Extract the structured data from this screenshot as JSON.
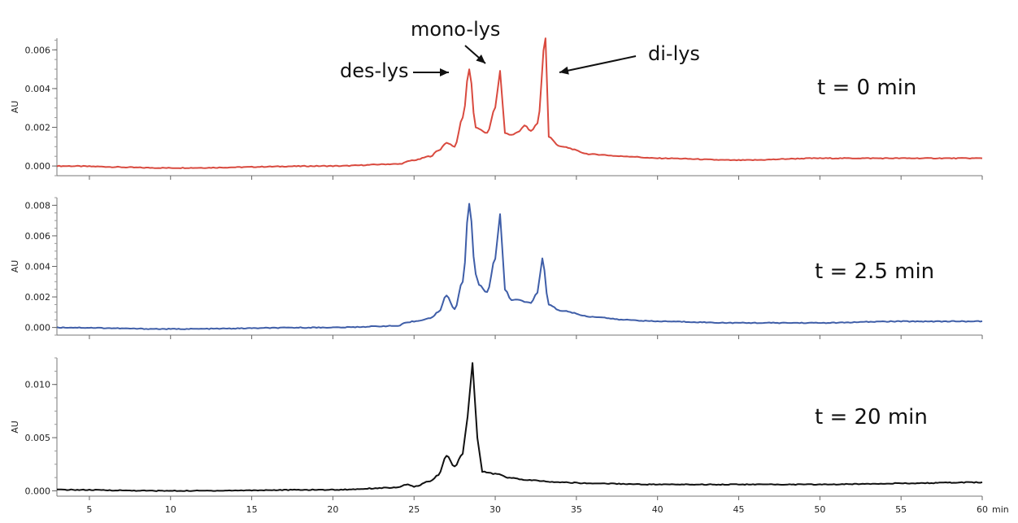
{
  "chart_data": [
    {
      "type": "line",
      "ylabel": "AU",
      "series": [
        {
          "color": "#d94a3f",
          "x": [
            3,
            10,
            20,
            24,
            25,
            26,
            26.5,
            27,
            27.5,
            28,
            28.4,
            28.8,
            29,
            29.5,
            30,
            30.3,
            30.6,
            31,
            31.5,
            31.8,
            32.2,
            32.6,
            33.1,
            33.3,
            34,
            36,
            38,
            40,
            45,
            50,
            55,
            60
          ],
          "y": [
            0.0,
            -0.0001,
            0.0,
            0.0001,
            0.0003,
            0.0005,
            0.0008,
            0.0012,
            0.001,
            0.0025,
            0.005,
            0.002,
            0.0019,
            0.0017,
            0.003,
            0.0049,
            0.0017,
            0.0016,
            0.0018,
            0.0021,
            0.0018,
            0.0022,
            0.0066,
            0.0015,
            0.001,
            0.0006,
            0.0005,
            0.0004,
            0.0003,
            0.0004,
            0.0004,
            0.0004
          ]
        }
      ],
      "ylim": [
        -0.0005,
        0.0066
      ],
      "yticks": [
        0.0,
        0.002,
        0.004,
        0.006
      ],
      "ytick_labels": [
        "0.000",
        "0.002",
        "0.004",
        "0.006"
      ],
      "time_label": "t = 0 min",
      "annotations": [
        "des-lys",
        "mono-lys",
        "di-lys"
      ]
    },
    {
      "type": "line",
      "ylabel": "AU",
      "series": [
        {
          "color": "#3f5ea8",
          "x": [
            3,
            10,
            20,
            24,
            24.5,
            25,
            26,
            26.5,
            27,
            27.5,
            28,
            28.4,
            28.8,
            29,
            29.5,
            30,
            30.3,
            30.6,
            31,
            31.5,
            31.8,
            32.2,
            32.6,
            32.9,
            33.3,
            34,
            36,
            38,
            40,
            45,
            50,
            55,
            60
          ],
          "y": [
            0.0,
            -0.0001,
            0.0,
            0.0001,
            0.0003,
            0.0004,
            0.0006,
            0.001,
            0.0021,
            0.0012,
            0.003,
            0.0081,
            0.0035,
            0.0028,
            0.0023,
            0.0045,
            0.0074,
            0.0025,
            0.0018,
            0.0018,
            0.0017,
            0.0016,
            0.0023,
            0.0045,
            0.0015,
            0.0011,
            0.0007,
            0.0005,
            0.0004,
            0.0003,
            0.0003,
            0.0004,
            0.0004
          ]
        }
      ],
      "ylim": [
        -0.0005,
        0.0085
      ],
      "yticks": [
        0.0,
        0.002,
        0.004,
        0.006,
        0.008
      ],
      "ytick_labels": [
        "0.000",
        "0.002",
        "0.004",
        "0.006",
        "0.008"
      ],
      "time_label": "t = 2.5 min"
    },
    {
      "type": "line",
      "ylabel": "AU",
      "xlabel": "min",
      "series": [
        {
          "color": "#111111",
          "x": [
            3,
            10,
            20,
            24,
            24.5,
            25,
            26,
            26.5,
            27,
            27.5,
            28,
            28.3,
            28.6,
            28.9,
            29.2,
            30,
            31,
            32,
            34,
            36,
            40,
            45,
            50,
            55,
            60
          ],
          "y": [
            0.0001,
            0.0,
            0.0001,
            0.0003,
            0.0006,
            0.0004,
            0.0009,
            0.0015,
            0.0033,
            0.0023,
            0.0035,
            0.007,
            0.012,
            0.005,
            0.0018,
            0.0016,
            0.0012,
            0.001,
            0.0008,
            0.0007,
            0.0006,
            0.0006,
            0.0006,
            0.0007,
            0.0008
          ]
        }
      ],
      "ylim": [
        -0.0005,
        0.0125
      ],
      "yticks": [
        0.0,
        0.005,
        0.01
      ],
      "ytick_labels": [
        "0.000",
        "0.005",
        "0.010"
      ],
      "time_label": "t = 20 min",
      "xlim": [
        3,
        60
      ],
      "xticks": [
        5,
        10,
        15,
        20,
        25,
        30,
        35,
        40,
        45,
        50,
        55,
        60
      ],
      "xtick_labels": [
        "5",
        "10",
        "15",
        "20",
        "25",
        "30",
        "35",
        "40",
        "45",
        "50",
        "55",
        "60"
      ]
    }
  ]
}
